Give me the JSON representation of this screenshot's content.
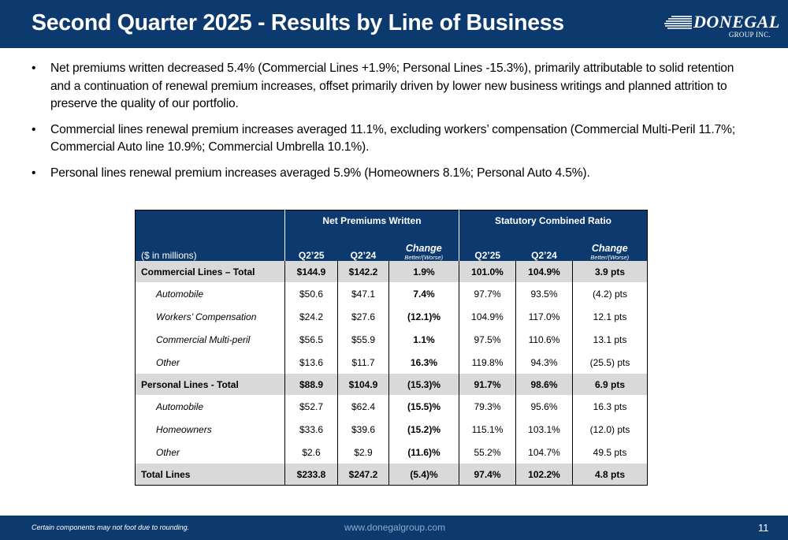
{
  "header": {
    "title": "Second Quarter 2025 - Results by Line of Business",
    "logo_text": "DONEGAL",
    "logo_sub": "GROUP INC."
  },
  "bullets": [
    "Net premiums written decreased 5.4% (Commercial Lines +1.9%; Personal Lines -15.3%), primarily attributable to solid retention and a continuation of renewal premium increases, offset primarily driven by lower new business writings and planned attrition to preserve the quality of our portfolio.",
    "Commercial lines renewal premium increases averaged 11.1%, excluding workers’ compensation (Commercial Multi-Peril 11.7%; Commercial Auto line 10.9%; Commercial Umbrella 10.1%).",
    "Personal lines renewal premium increases averaged 5.9% (Homeowners 8.1%; Personal Auto 4.5%)."
  ],
  "table": {
    "group1": "Net Premiums Written",
    "group2": "Statutory Combined Ratio",
    "units_label": "($ in millions)",
    "col_q225": "Q2’25",
    "col_q224": "Q2’24",
    "col_change": "Change",
    "col_change_sub": "Better/(Worse)",
    "rows": [
      {
        "label": "Commercial Lines – Total",
        "v": [
          "$144.9",
          "$142.2",
          "1.9%",
          "101.0%",
          "104.9%",
          "3.9 pts"
        ]
      },
      {
        "label": "Automobile",
        "v": [
          "$50.6",
          "$47.1",
          "7.4%",
          "97.7%",
          "93.5%",
          "(4.2) pts"
        ]
      },
      {
        "label": "Workers’ Compensation",
        "v": [
          "$24.2",
          "$27.6",
          "(12.1)%",
          "104.9%",
          "117.0%",
          "12.1 pts"
        ]
      },
      {
        "label": "Commercial Multi-peril",
        "v": [
          "$56.5",
          "$55.9",
          "1.1%",
          "97.5%",
          "110.6%",
          "13.1 pts"
        ]
      },
      {
        "label": "Other",
        "v": [
          "$13.6",
          "$11.7",
          "16.3%",
          "119.8%",
          "94.3%",
          "(25.5) pts"
        ]
      },
      {
        "label": "Personal Lines - Total",
        "v": [
          "$88.9",
          "$104.9",
          "(15.3)%",
          "91.7%",
          "98.6%",
          "6.9 pts"
        ]
      },
      {
        "label": "Automobile",
        "v": [
          "$52.7",
          "$62.4",
          "(15.5)%",
          "79.3%",
          "95.6%",
          "16.3 pts"
        ]
      },
      {
        "label": "Homeowners",
        "v": [
          "$33.6",
          "$39.6",
          "(15.2)%",
          "115.1%",
          "103.1%",
          "(12.0) pts"
        ]
      },
      {
        "label": "Other",
        "v": [
          "$2.6",
          "$2.9",
          "(11.6)%",
          "55.2%",
          "104.7%",
          "49.5 pts"
        ]
      },
      {
        "label": "Total Lines",
        "v": [
          "$233.8",
          "$247.2",
          "(5.4)%",
          "97.4%",
          "102.2%",
          "4.8 pts"
        ]
      }
    ]
  },
  "footer": {
    "note": "Certain components may not foot due to rounding.",
    "url": "www.donegalgroup.com",
    "page": "11"
  }
}
